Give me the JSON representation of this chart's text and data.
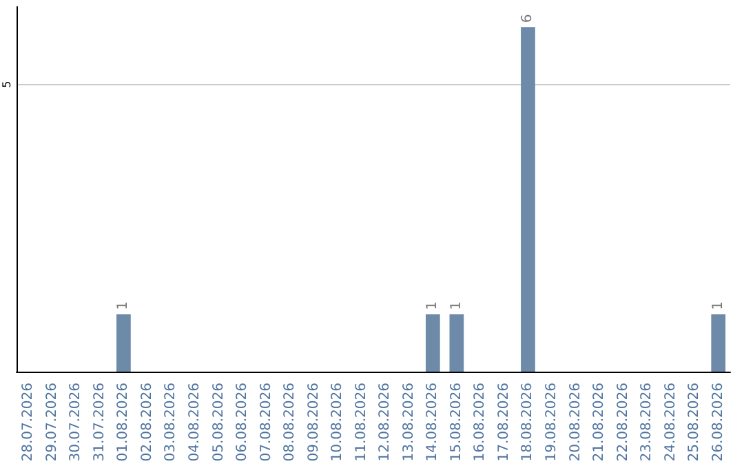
{
  "chart_data": {
    "type": "bar",
    "categories": [
      "28.07.2026",
      "29.07.2026",
      "30.07.2026",
      "31.07.2026",
      "01.08.2026",
      "02.08.2026",
      "03.08.2026",
      "04.08.2026",
      "05.08.2026",
      "06.08.2026",
      "07.08.2026",
      "08.08.2026",
      "09.08.2026",
      "10.08.2026",
      "11.08.2026",
      "12.08.2026",
      "13.08.2026",
      "14.08.2026",
      "15.08.2026",
      "16.08.2026",
      "17.08.2026",
      "18.08.2026",
      "19.08.2026",
      "20.08.2026",
      "21.08.2026",
      "22.08.2026",
      "23.08.2026",
      "24.08.2026",
      "25.08.2026",
      "26.08.2026"
    ],
    "values": [
      0,
      0,
      0,
      0,
      1,
      0,
      0,
      0,
      0,
      0,
      0,
      0,
      0,
      0,
      0,
      0,
      0,
      1,
      1,
      0,
      0,
      6,
      0,
      0,
      0,
      0,
      0,
      0,
      0,
      1
    ],
    "value_labels": [
      null,
      null,
      null,
      null,
      "1",
      null,
      null,
      null,
      null,
      null,
      null,
      null,
      null,
      null,
      null,
      null,
      null,
      "1",
      "1",
      null,
      null,
      "6",
      null,
      null,
      null,
      null,
      null,
      null,
      null,
      "1"
    ],
    "color": "#6d8aa8",
    "ylim": [
      0,
      6.35
    ],
    "yticks": [
      5
    ],
    "grid": "y"
  }
}
